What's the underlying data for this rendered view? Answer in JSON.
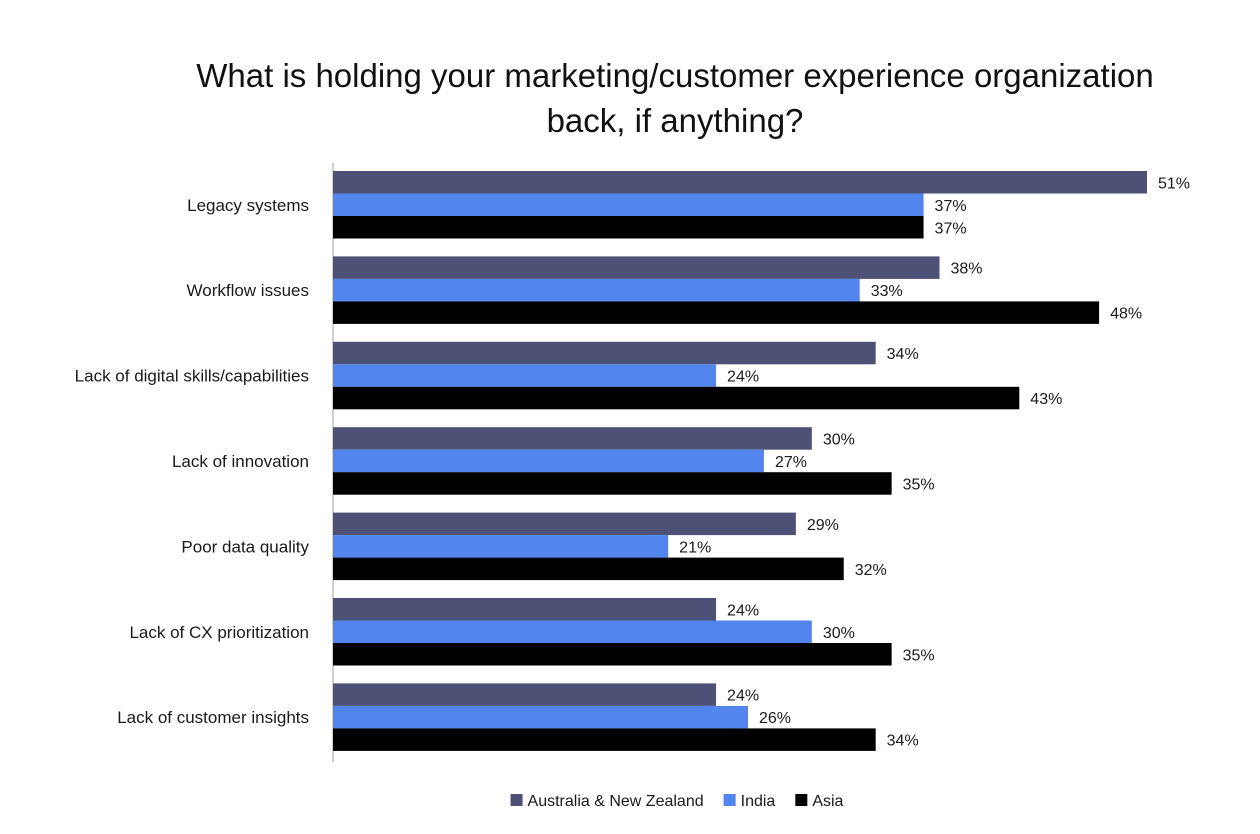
{
  "chart_data": {
    "type": "bar",
    "orientation": "horizontal",
    "title_lines": [
      "What is holding your marketing/customer experience organization",
      "back, if anything?"
    ],
    "categories": [
      "Legacy systems",
      "Workflow issues",
      "Lack of digital skills/capabilities",
      "Lack of innovation",
      "Poor data quality",
      "Lack of CX prioritization",
      "Lack of customer insights"
    ],
    "series": [
      {
        "name": "Australia & New Zealand",
        "color": "#4d5175",
        "values": [
          51,
          38,
          34,
          30,
          29,
          24,
          24
        ],
        "labels": [
          "51%",
          "38%",
          "34%",
          "30%",
          "29%",
          "24%",
          "24%"
        ]
      },
      {
        "name": "India",
        "color": "#5286ee",
        "values": [
          37,
          33,
          24,
          27,
          21,
          30,
          26
        ],
        "labels": [
          "37%",
          "33%",
          "24%",
          "27%",
          "21%",
          "30%",
          "26%"
        ]
      },
      {
        "name": "Asia",
        "color": "#000000",
        "values": [
          37,
          48,
          43,
          35,
          32,
          35,
          34
        ],
        "labels": [
          "37%",
          "48%",
          "43%",
          "35%",
          "32%",
          "35%",
          "34%"
        ]
      }
    ],
    "xlim": [
      0,
      51
    ],
    "grid": false,
    "legend_position": "bottom-center",
    "axis_color": "#bfbfbf"
  }
}
